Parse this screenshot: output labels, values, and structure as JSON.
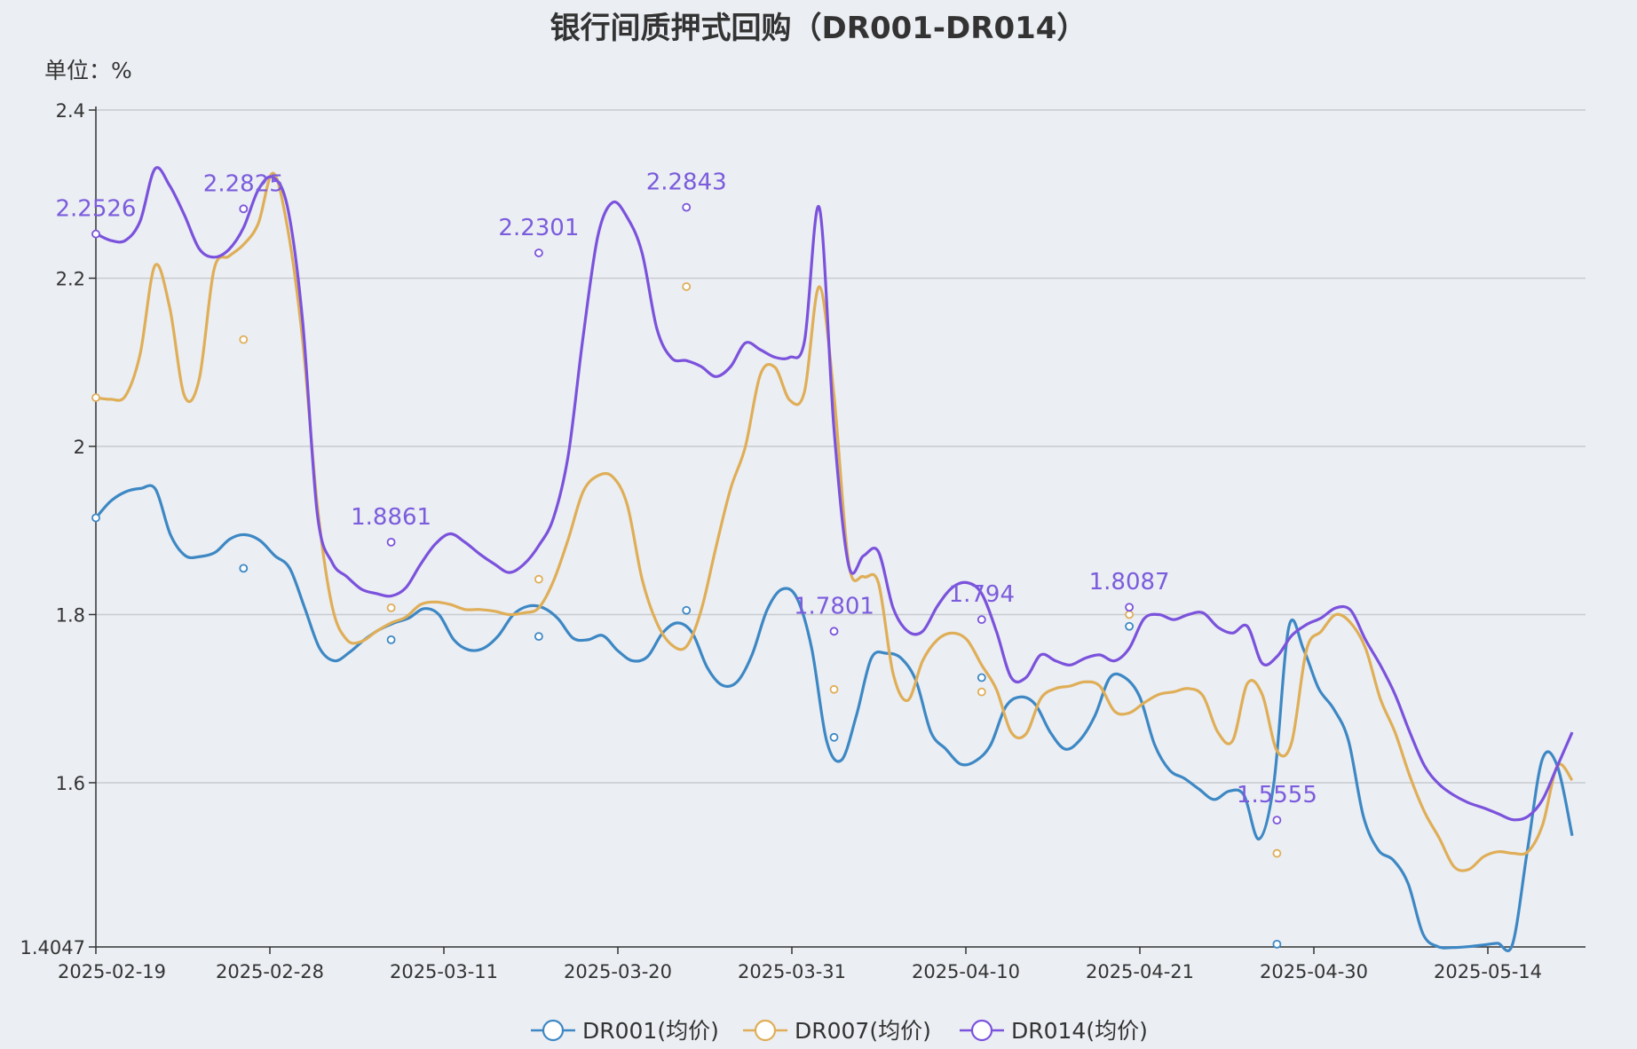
{
  "chart_data": {
    "type": "line",
    "title": "银行间质押式回购（DR001-DR014）",
    "unit_label": "单位：%",
    "xlabel": "",
    "ylabel": "",
    "ylim": [
      1.4047,
      2.4
    ],
    "yticks": [
      2.4,
      2.2,
      2.0,
      1.8,
      1.6,
      1.4047
    ],
    "ytick_labels": [
      "2.4",
      "2.2",
      "2",
      "1.8",
      "1.6",
      "1.4047"
    ],
    "xtick_labels": [
      "2025-02-19",
      "2025-02-28",
      "2025-03-11",
      "2025-03-20",
      "2025-03-31",
      "2025-04-10",
      "2025-04-21",
      "2025-04-30",
      "2025-05-14"
    ],
    "grid": true,
    "legend_position": "bottom",
    "x_index_range": [
      0,
      60
    ],
    "series": [
      {
        "name": "DR001(均价)",
        "color": "#3d88c4",
        "values": [
          1.915,
          1.935,
          1.946,
          1.95,
          1.949,
          1.895,
          1.87,
          1.869,
          1.874,
          1.89,
          1.895,
          1.888,
          1.87,
          1.855,
          1.808,
          1.76,
          1.745,
          1.755,
          1.77,
          1.782,
          1.79,
          1.796,
          1.807,
          1.8,
          1.77,
          1.758,
          1.76,
          1.775,
          1.8,
          1.81,
          1.808,
          1.795,
          1.772,
          1.77,
          1.775,
          1.757,
          1.745,
          1.75,
          1.778,
          1.79,
          1.778,
          1.737,
          1.716,
          1.72,
          1.752,
          1.805,
          1.83,
          1.82,
          1.76,
          1.65,
          1.627,
          1.68,
          1.748,
          1.754,
          1.748,
          1.721,
          1.66,
          1.64,
          1.622,
          1.626,
          1.645,
          1.69,
          1.702,
          1.693,
          1.66,
          1.64,
          1.651,
          1.68,
          1.725,
          1.725,
          1.702,
          1.645,
          1.615,
          1.605,
          1.592,
          1.58,
          1.59,
          1.585,
          1.533,
          1.6,
          1.785,
          1.758,
          1.712,
          1.688,
          1.65,
          1.56,
          1.52,
          1.508,
          1.48,
          1.42,
          1.405,
          1.404,
          1.405,
          1.407,
          1.409,
          1.408,
          1.52,
          1.628,
          1.62,
          1.537
        ]
      },
      {
        "name": "DR007(均价)",
        "color": "#dfae57",
        "values": [
          2.058,
          2.056,
          2.06,
          2.11,
          2.215,
          2.165,
          2.06,
          2.08,
          2.21,
          2.226,
          2.24,
          2.265,
          2.325,
          2.258,
          2.127,
          1.93,
          1.81,
          1.77,
          1.768,
          1.78,
          1.79,
          1.797,
          1.812,
          1.815,
          1.812,
          1.806,
          1.806,
          1.804,
          1.8,
          1.802,
          1.808,
          1.84,
          1.89,
          1.946,
          1.965,
          1.964,
          1.93,
          1.842,
          1.79,
          1.764,
          1.762,
          1.805,
          1.88,
          1.95,
          2.0,
          2.085,
          2.094,
          2.055,
          2.065,
          2.19,
          2.06,
          1.86,
          1.845,
          1.838,
          1.73,
          1.698,
          1.745,
          1.77,
          1.778,
          1.77,
          1.74,
          1.711,
          1.66,
          1.658,
          1.7,
          1.712,
          1.715,
          1.72,
          1.715,
          1.685,
          1.683,
          1.695,
          1.705,
          1.708,
          1.712,
          1.703,
          1.66,
          1.65,
          1.718,
          1.705,
          1.638,
          1.648,
          1.758,
          1.78,
          1.8,
          1.79,
          1.76,
          1.7,
          1.66,
          1.608,
          1.565,
          1.534,
          1.5,
          1.497,
          1.512,
          1.518,
          1.516,
          1.518,
          1.55,
          1.62,
          1.603
        ]
      },
      {
        "name": "DR014(均价)",
        "color": "#7b52dc",
        "values": [
          2.253,
          2.245,
          2.245,
          2.268,
          2.33,
          2.31,
          2.275,
          2.235,
          2.225,
          2.234,
          2.26,
          2.305,
          2.32,
          2.283,
          2.15,
          1.92,
          1.862,
          1.845,
          1.83,
          1.825,
          1.822,
          1.832,
          1.86,
          1.884,
          1.896,
          1.886,
          1.872,
          1.86,
          1.85,
          1.86,
          1.882,
          1.915,
          1.99,
          2.13,
          2.25,
          2.29,
          2.272,
          2.23,
          2.14,
          2.105,
          2.102,
          2.095,
          2.083,
          2.095,
          2.123,
          2.115,
          2.106,
          2.106,
          2.125,
          2.284,
          2.02,
          1.858,
          1.87,
          1.875,
          1.808,
          1.78,
          1.78,
          1.81,
          1.832,
          1.838,
          1.825,
          1.78,
          1.725,
          1.725,
          1.752,
          1.745,
          1.74,
          1.748,
          1.752,
          1.745,
          1.76,
          1.795,
          1.8,
          1.794,
          1.8,
          1.802,
          1.785,
          1.778,
          1.786,
          1.742,
          1.75,
          1.775,
          1.788,
          1.796,
          1.808,
          1.805,
          1.77,
          1.74,
          1.705,
          1.66,
          1.62,
          1.598,
          1.585,
          1.576,
          1.57,
          1.563,
          1.556,
          1.56,
          1.58,
          1.62,
          1.66
        ]
      }
    ],
    "annotations": [
      {
        "series": "DR014(均价)",
        "x": 0,
        "label": "2.2526"
      },
      {
        "series": "DR014(均价)",
        "x": 6,
        "label": "2.2825"
      },
      {
        "series": "DR014(均价)",
        "x": 12,
        "label": "1.8861"
      },
      {
        "series": "DR014(均价)",
        "x": 18,
        "label": "2.2301"
      },
      {
        "series": "DR014(均价)",
        "x": 24,
        "label": "2.2843"
      },
      {
        "series": "DR014(均价)",
        "x": 30,
        "label": "1.7801"
      },
      {
        "series": "DR014(均价)",
        "x": 36,
        "label": "1.794"
      },
      {
        "series": "DR014(均价)",
        "x": 42,
        "label": "1.8087"
      },
      {
        "series": "DR014(均价)",
        "x": 48,
        "label": "1.5555"
      }
    ],
    "markers": {
      "DR001(均价)": [
        [
          0,
          1.915
        ],
        [
          6,
          1.855
        ],
        [
          12,
          1.77
        ],
        [
          18,
          1.774
        ],
        [
          24,
          1.805
        ],
        [
          30,
          1.654
        ],
        [
          36,
          1.725
        ],
        [
          42,
          1.786
        ],
        [
          48,
          1.408
        ]
      ],
      "DR007(均价)": [
        [
          0,
          2.058
        ],
        [
          6,
          2.127
        ],
        [
          12,
          1.808
        ],
        [
          18,
          1.842
        ],
        [
          24,
          2.19
        ],
        [
          30,
          1.711
        ],
        [
          36,
          1.708
        ],
        [
          42,
          1.8
        ],
        [
          48,
          1.516
        ]
      ],
      "DR014(均价)": [
        [
          0,
          2.2526
        ],
        [
          6,
          2.2825
        ],
        [
          12,
          1.8861
        ],
        [
          18,
          2.2301
        ],
        [
          24,
          2.2843
        ],
        [
          30,
          1.7801
        ],
        [
          36,
          1.794
        ],
        [
          42,
          1.8087
        ],
        [
          48,
          1.5555
        ]
      ]
    }
  }
}
